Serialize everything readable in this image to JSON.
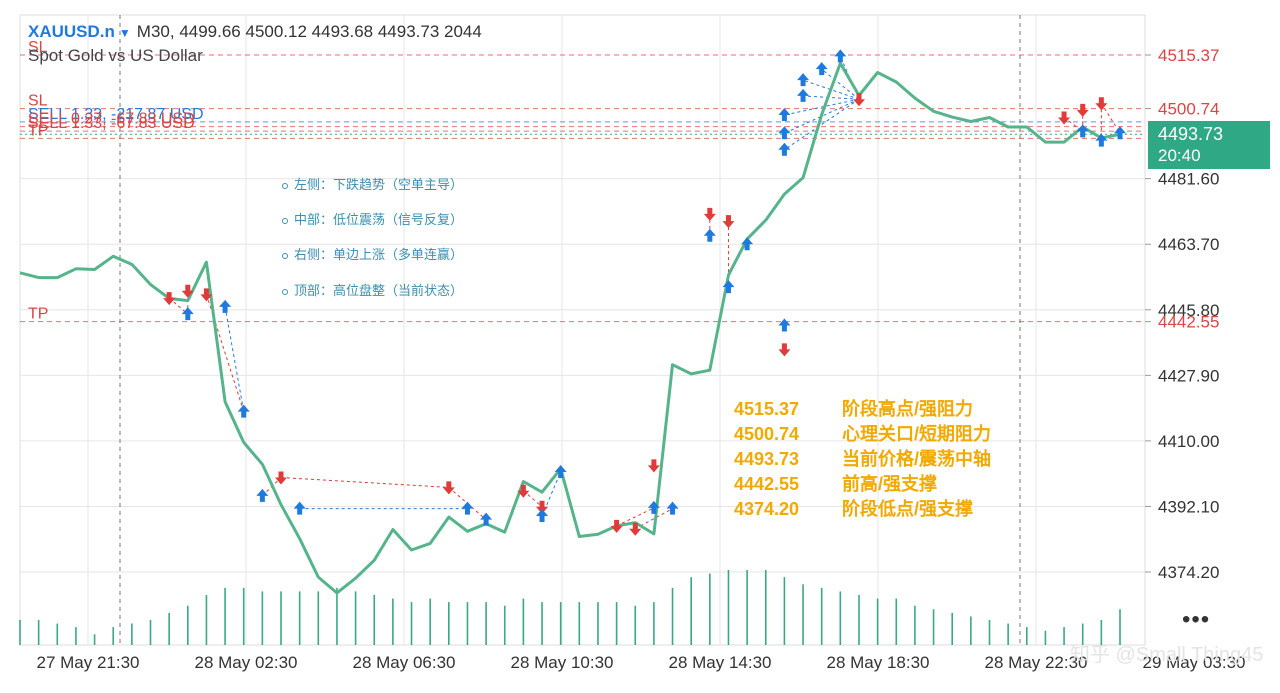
{
  "header": {
    "symbol": "XAUUSD.n",
    "symbol_menu_icon": "triangle-down-icon",
    "ohlc_line": "M30, 4499.66 4500.12 4493.68 4493.73 2044",
    "description": "Spot Gold vs US Dollar"
  },
  "price_box": {
    "price": "4493.73",
    "countdown": "20:40"
  },
  "order_lines": [
    {
      "label": "SL",
      "price": 4515.37,
      "color": "#d44"
    },
    {
      "label": "SL",
      "price": 4500.74,
      "color": "#d44"
    },
    {
      "label": "SELL 1.33, -217.87 USD",
      "price": 4497.1,
      "color": "#1f7ae0"
    },
    {
      "label": "SELL 0.27, -67.83 USD",
      "price": 4495.8,
      "color": "#d44"
    },
    {
      "label": "SELL 1.33, -67.83 USD",
      "price": 4494.6,
      "color": "#d44"
    },
    {
      "label": "TP",
      "price": 4492.6,
      "color": "#d44"
    },
    {
      "label": "TP",
      "price": 4442.55,
      "color": "#d44"
    }
  ],
  "axis_price_labels": [
    {
      "text": "4515.37",
      "price": 4515.37,
      "color": "#d44"
    },
    {
      "text": "4500.74",
      "price": 4500.74,
      "color": "#d44"
    },
    {
      "text": "4481.60",
      "price": 4481.6,
      "color": "#333"
    },
    {
      "text": "4463.70",
      "price": 4463.7,
      "color": "#333"
    },
    {
      "text": "4445.80",
      "price": 4445.8,
      "color": "#333"
    },
    {
      "text": "4442.55",
      "price": 4442.55,
      "color": "#d44"
    },
    {
      "text": "4427.90",
      "price": 4427.9,
      "color": "#333"
    },
    {
      "text": "4410.00",
      "price": 4410.0,
      "color": "#333"
    },
    {
      "text": "4392.10",
      "price": 4392.1,
      "color": "#333"
    },
    {
      "text": "4374.20",
      "price": 4374.2,
      "color": "#333"
    }
  ],
  "annotations": [
    "左侧：下跌趋势（空单主导）",
    "中部：低位震荡（信号反复）",
    "右侧：单边上涨（多单连赢）",
    "顶部：高位盘整（当前状态）"
  ],
  "key_levels": [
    {
      "price": "4515.37",
      "desc": "阶段高点/强阻力"
    },
    {
      "price": "4500.74",
      "desc": "心理关口/短期阻力"
    },
    {
      "price": "4493.73",
      "desc": "当前价格/震荡中轴"
    },
    {
      "price": "4442.55",
      "desc": "前高/强支撑"
    },
    {
      "price": "4374.20",
      "desc": "阶段低点/强支撑"
    }
  ],
  "more_menu_icon": "more-dots-icon",
  "watermark": "知乎 @Small Thing45",
  "colors": {
    "line": "#55b48a",
    "buy": "#1f7ae0",
    "sell": "#e03a3a",
    "volume": "#3aa886",
    "grid": "#e6e6e6"
  },
  "chart_data": {
    "type": "line",
    "symbol": "XAUUSD.n",
    "timeframe": "M30",
    "x_tick_labels": [
      "27 May 21:30",
      "28 May 02:30",
      "28 May 06:30",
      "28 May 10:30",
      "28 May 14:30",
      "28 May 18:30",
      "28 May 22:30",
      "29 May 03:30"
    ],
    "ylim": [
      4366,
      4520
    ],
    "grid": true,
    "series": [
      {
        "values": [
          4455.9,
          4454.6,
          4454.6,
          4457.0,
          4456.8,
          4460.4,
          4458.2,
          4452.7,
          4448.9,
          4448.3,
          4458.8,
          4420.7,
          4409.6,
          4403.6,
          4392.6,
          4383.3,
          4372.8,
          4368.5,
          4372.5,
          4377.4,
          4385.8,
          4380.2,
          4382.0,
          4389.2,
          4385.3,
          4387.4,
          4385.1,
          4398.9,
          4396.0,
          4402.4,
          4383.9,
          4384.5,
          4386.8,
          4387.7,
          4384.6,
          4430.8,
          4428.3,
          4429.3,
          4455.3,
          4465.1,
          4470.3,
          4477.4,
          4481.9,
          4499.1,
          4513.1,
          4504.3,
          4510.6,
          4508.0,
          4503.6,
          4500.0,
          4498.4,
          4497.2,
          4498.3,
          4495.7,
          4495.7,
          4491.6,
          4491.6,
          4495.7,
          4492.7,
          4493.73
        ]
      }
    ],
    "volume": [
      7,
      7,
      6,
      5,
      3,
      5,
      6,
      7,
      9,
      11,
      14,
      16,
      16,
      15,
      15,
      15,
      15,
      16,
      15,
      14,
      13,
      12,
      13,
      12,
      12,
      12,
      11,
      13,
      12,
      12,
      12,
      12,
      12,
      11,
      12,
      16,
      19,
      20,
      21,
      21,
      21,
      19,
      17,
      16,
      15,
      14,
      13,
      13,
      11,
      10,
      9,
      8,
      7,
      6,
      5,
      4,
      5,
      6,
      7,
      10
    ],
    "markers": [
      {
        "i": 8,
        "price": 4449.0,
        "type": "sell"
      },
      {
        "i": 9,
        "price": 4444.6,
        "type": "buy"
      },
      {
        "i": 9,
        "price": 4451.0,
        "type": "sell"
      },
      {
        "i": 10,
        "price": 4450.0,
        "type": "sell"
      },
      {
        "i": 11,
        "price": 4446.6,
        "type": "buy"
      },
      {
        "i": 12,
        "price": 4418.0,
        "type": "buy"
      },
      {
        "i": 13,
        "price": 4395.0,
        "type": "buy"
      },
      {
        "i": 14,
        "price": 4400.0,
        "type": "sell"
      },
      {
        "i": 15,
        "price": 4391.5,
        "type": "buy"
      },
      {
        "i": 23,
        "price": 4397.3,
        "type": "sell"
      },
      {
        "i": 24,
        "price": 4391.5,
        "type": "buy"
      },
      {
        "i": 25,
        "price": 4388.5,
        "type": "buy"
      },
      {
        "i": 27,
        "price": 4396.4,
        "type": "sell"
      },
      {
        "i": 28,
        "price": 4392.0,
        "type": "sell"
      },
      {
        "i": 28,
        "price": 4389.5,
        "type": "buy"
      },
      {
        "i": 29,
        "price": 4401.5,
        "type": "buy"
      },
      {
        "i": 32,
        "price": 4386.8,
        "type": "sell"
      },
      {
        "i": 33,
        "price": 4386.0,
        "type": "sell"
      },
      {
        "i": 34,
        "price": 4391.7,
        "type": "buy"
      },
      {
        "i": 34,
        "price": 4403.3,
        "type": "sell"
      },
      {
        "i": 35,
        "price": 4391.5,
        "type": "buy"
      },
      {
        "i": 37,
        "price": 4472.0,
        "type": "sell"
      },
      {
        "i": 37,
        "price": 4466.0,
        "type": "buy"
      },
      {
        "i": 38,
        "price": 4470.0,
        "type": "sell"
      },
      {
        "i": 38,
        "price": 4452.0,
        "type": "buy"
      },
      {
        "i": 39,
        "price": 4463.7,
        "type": "buy"
      },
      {
        "i": 41,
        "price": 4441.5,
        "type": "buy"
      },
      {
        "i": 41,
        "price": 4435.0,
        "type": "sell"
      },
      {
        "i": 41,
        "price": 4499.0,
        "type": "buy"
      },
      {
        "i": 41,
        "price": 4494.0,
        "type": "buy"
      },
      {
        "i": 41,
        "price": 4489.5,
        "type": "buy"
      },
      {
        "i": 42,
        "price": 4508.5,
        "type": "buy"
      },
      {
        "i": 42,
        "price": 4504.2,
        "type": "buy"
      },
      {
        "i": 43,
        "price": 4511.5,
        "type": "buy"
      },
      {
        "i": 44,
        "price": 4515.0,
        "type": "buy"
      },
      {
        "i": 45,
        "price": 4503.3,
        "type": "sell"
      },
      {
        "i": 56,
        "price": 4498.3,
        "type": "sell"
      },
      {
        "i": 57,
        "price": 4500.4,
        "type": "sell"
      },
      {
        "i": 57,
        "price": 4494.5,
        "type": "buy"
      },
      {
        "i": 58,
        "price": 4502.2,
        "type": "sell"
      },
      {
        "i": 58,
        "price": 4492.0,
        "type": "buy"
      },
      {
        "i": 59,
        "price": 4494.0,
        "type": "buy"
      }
    ]
  }
}
